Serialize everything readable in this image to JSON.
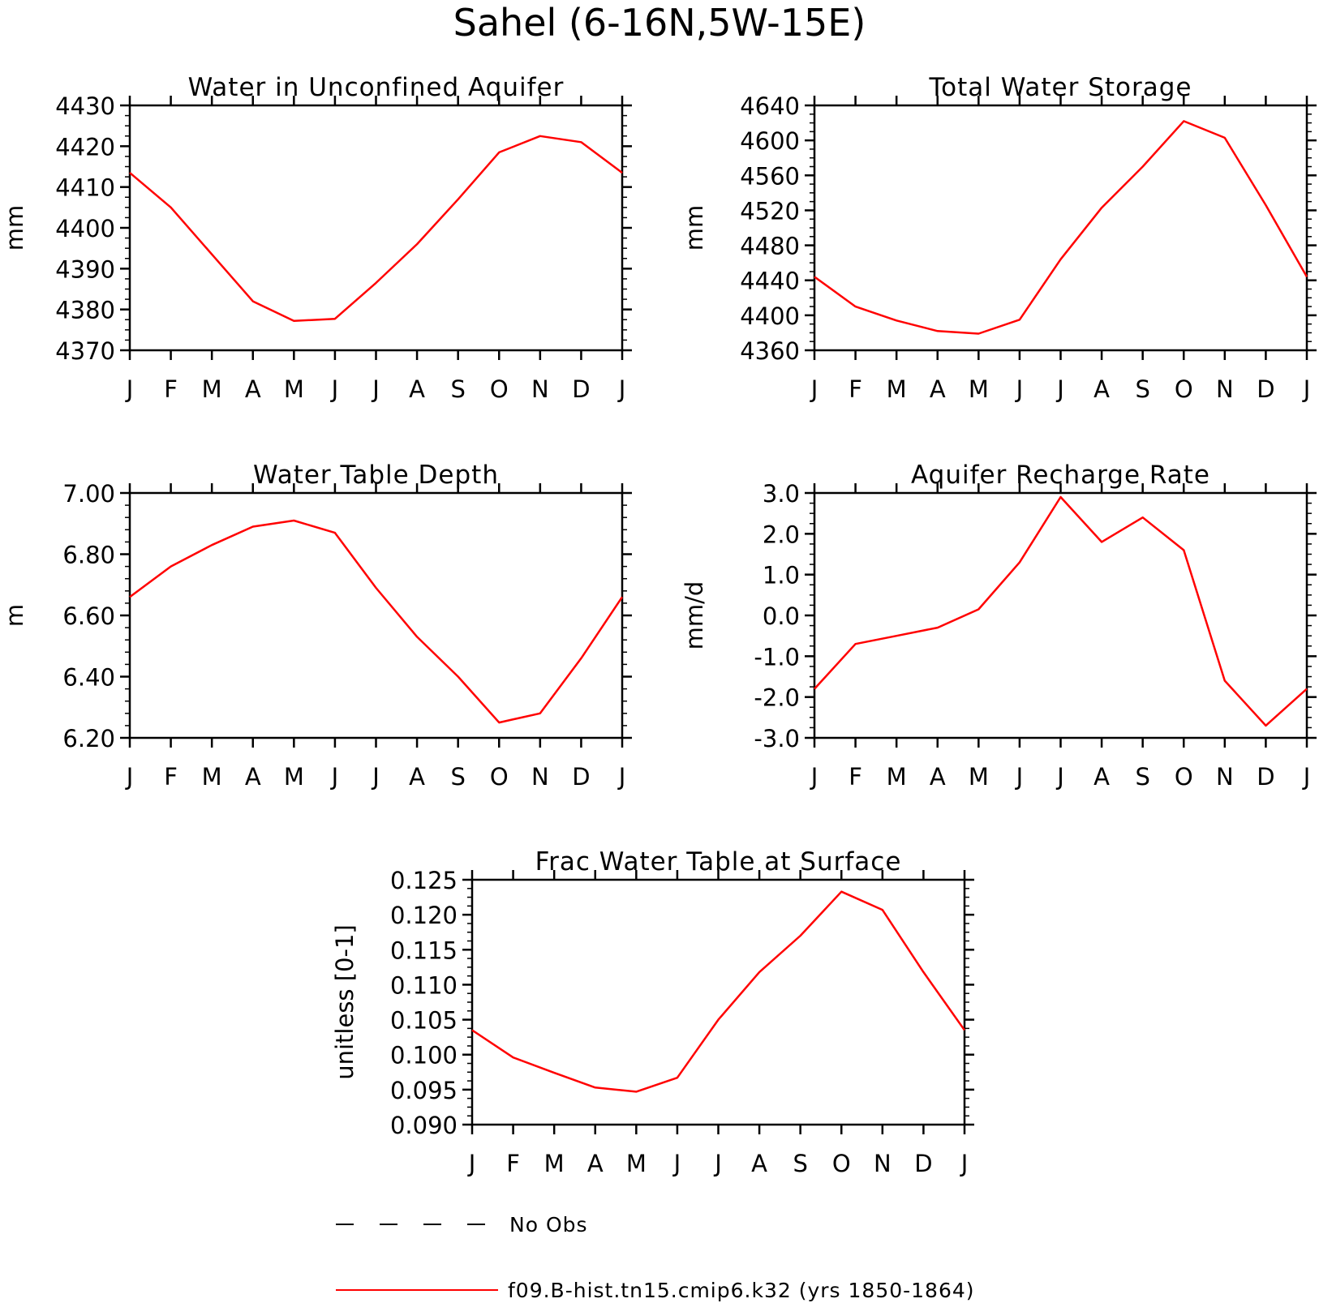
{
  "figure": {
    "title": "Sahel (6-16N,5W-15E)"
  },
  "legend": {
    "entries": [
      {
        "label": "No Obs",
        "style": "dashed",
        "color": "#000000"
      },
      {
        "label": "f09.B-hist.tn15.cmip6.k32 (yrs 1850-1864)",
        "style": "solid",
        "color": "#ff0000"
      }
    ]
  },
  "chart_data": [
    {
      "type": "line",
      "title": "Water in Unconfined Aquifer",
      "ylabel": "mm",
      "xlabel": "",
      "categories": [
        "J",
        "F",
        "M",
        "A",
        "M",
        "J",
        "J",
        "A",
        "S",
        "O",
        "N",
        "D",
        "J"
      ],
      "ylim": [
        4370,
        4430
      ],
      "yticks": [
        "4430",
        "4420",
        "4410",
        "4400",
        "4390",
        "4380",
        "4370"
      ],
      "series": [
        {
          "color": "#ff0000",
          "values": [
            4413.5,
            4405,
            4393.5,
            4382,
            4377.2,
            4377.7,
            4386.5,
            4396,
            4407,
            4418.5,
            4422.5,
            4421,
            4413.5
          ]
        }
      ]
    },
    {
      "type": "line",
      "title": "Total Water Storage",
      "ylabel": "mm",
      "xlabel": "",
      "categories": [
        "J",
        "F",
        "M",
        "A",
        "M",
        "J",
        "J",
        "A",
        "S",
        "O",
        "N",
        "D",
        "J"
      ],
      "ylim": [
        4360,
        4640
      ],
      "yticks": [
        "4640",
        "4600",
        "4560",
        "4520",
        "4480",
        "4440",
        "4400",
        "4360"
      ],
      "series": [
        {
          "color": "#ff0000",
          "values": [
            4444,
            4410,
            4394,
            4382,
            4379,
            4395,
            4464,
            4523,
            4570,
            4622,
            4603,
            4526,
            4444
          ]
        }
      ]
    },
    {
      "type": "line",
      "title": "Water Table Depth",
      "ylabel": "m",
      "xlabel": "",
      "categories": [
        "J",
        "F",
        "M",
        "A",
        "M",
        "J",
        "J",
        "A",
        "S",
        "O",
        "N",
        "D",
        "J"
      ],
      "ylim": [
        6.2,
        7.0
      ],
      "yticks": [
        "7.00",
        "6.80",
        "6.60",
        "6.40",
        "6.20"
      ],
      "series": [
        {
          "color": "#ff0000",
          "values": [
            6.66,
            6.76,
            6.83,
            6.89,
            6.91,
            6.87,
            6.69,
            6.53,
            6.4,
            6.25,
            6.28,
            6.46,
            6.66
          ]
        }
      ]
    },
    {
      "type": "line",
      "title": "Aquifer Recharge Rate",
      "ylabel": "mm/d",
      "xlabel": "",
      "categories": [
        "J",
        "F",
        "M",
        "A",
        "M",
        "J",
        "J",
        "A",
        "S",
        "O",
        "N",
        "D",
        "J"
      ],
      "ylim": [
        -3.0,
        3.0
      ],
      "yticks": [
        "3.0",
        "2.0",
        "1.0",
        "0.0",
        "-1.0",
        "-2.0",
        "-3.0"
      ],
      "series": [
        {
          "color": "#ff0000",
          "values": [
            -1.8,
            -0.7,
            -0.5,
            -0.3,
            0.15,
            1.3,
            2.9,
            1.8,
            2.4,
            1.6,
            -1.6,
            -2.7,
            -1.8
          ]
        }
      ]
    },
    {
      "type": "line",
      "title": "Frac Water Table at Surface",
      "ylabel": "unitless [0-1]",
      "xlabel": "",
      "categories": [
        "J",
        "F",
        "M",
        "A",
        "M",
        "J",
        "J",
        "A",
        "S",
        "O",
        "N",
        "D",
        "J"
      ],
      "ylim": [
        0.09,
        0.125
      ],
      "yticks": [
        "0.125",
        "0.120",
        "0.115",
        "0.110",
        "0.105",
        "0.100",
        "0.095",
        "0.090"
      ],
      "series": [
        {
          "color": "#ff0000",
          "values": [
            0.1035,
            0.0996,
            0.0974,
            0.0953,
            0.0947,
            0.0967,
            0.105,
            0.1118,
            0.117,
            0.1233,
            0.1207,
            0.1118,
            0.1035
          ]
        }
      ]
    }
  ]
}
